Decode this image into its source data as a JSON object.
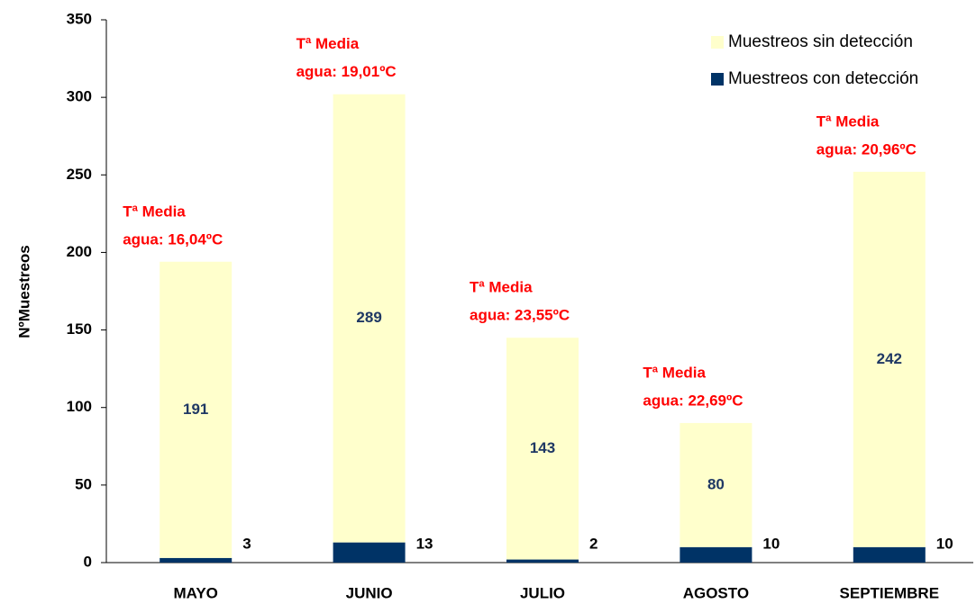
{
  "chart_data": {
    "type": "stacked_bar",
    "categories": [
      "MAYO",
      "JUNIO",
      "JULIO",
      "AGOSTO",
      "SEPTIEMBRE"
    ],
    "series": [
      {
        "name": "Muestreos con detección",
        "color": "#003366",
        "values": [
          3,
          13,
          2,
          10,
          10
        ]
      },
      {
        "name": "Muestreos sin detección",
        "color": "#ffffcc",
        "values": [
          191,
          289,
          143,
          80,
          242
        ]
      }
    ],
    "annotations": [
      [
        "Tª Media",
        "agua: 16,04ºC"
      ],
      [
        "Tª Media",
        "agua: 19,01ºC"
      ],
      [
        "Tª Media",
        "agua: 23,55ºC"
      ],
      [
        "Tª Media",
        "agua: 22,69ºC"
      ],
      [
        "Tª Media",
        "agua: 20,96ºC"
      ]
    ],
    "ylabel": "NºMuestreos",
    "ylim": [
      0,
      350
    ],
    "yticks": [
      0,
      50,
      100,
      150,
      200,
      250,
      300,
      350
    ],
    "legend": "upper right",
    "grid": false
  }
}
